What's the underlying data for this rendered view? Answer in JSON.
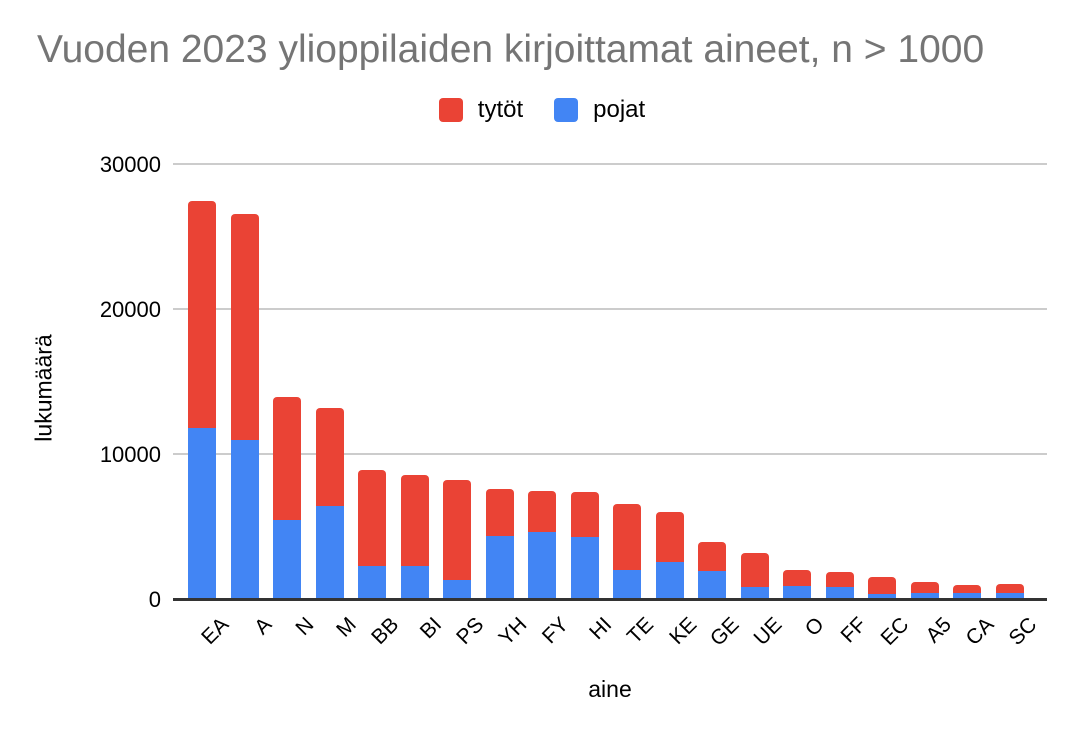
{
  "title": "Vuoden 2023 ylioppilaiden kirjoittamat aineet, n > 1000",
  "axes": {
    "y_title": "lukumäärä",
    "x_title": "aine"
  },
  "legend": [
    {
      "label": "tytöt",
      "color": "#EA4335"
    },
    {
      "label": "pojat",
      "color": "#4285F4"
    }
  ],
  "colors": {
    "tytot_red": "#EA4335",
    "pojat_blue": "#4285F4",
    "title_gray": "#757575",
    "gridline": "#cccccc",
    "axis_line": "#333333",
    "background": "#ffffff"
  },
  "chart_data": {
    "type": "bar",
    "stacked": true,
    "title": "Vuoden 2023 ylioppilaiden kirjoittamat aineet, n > 1000",
    "xlabel": "aine",
    "ylabel": "lukumäärä",
    "ylim": [
      0,
      30000
    ],
    "yticks": [
      0,
      10000,
      20000,
      30000
    ],
    "grid": true,
    "legend_position": "top-center",
    "legend_order": [
      "tytöt",
      "pojat"
    ],
    "categories": [
      "EA",
      "A",
      "N",
      "M",
      "BB",
      "BI",
      "PS",
      "YH",
      "FY",
      "HI",
      "TE",
      "KE",
      "GE",
      "UE",
      "O",
      "FF",
      "EC",
      "A5",
      "CA",
      "SC"
    ],
    "series": [
      {
        "name": "pojat",
        "color": "#4285F4",
        "stack": "bottom",
        "values": [
          11800,
          11000,
          5450,
          6400,
          2300,
          2300,
          1300,
          4350,
          4650,
          4300,
          2000,
          2550,
          1900,
          800,
          900,
          800,
          350,
          450,
          450,
          400
        ]
      },
      {
        "name": "tytöt",
        "color": "#EA4335",
        "stack": "top",
        "values": [
          15650,
          15550,
          8500,
          6750,
          6600,
          6250,
          6900,
          3250,
          2800,
          3100,
          4550,
          3450,
          2050,
          2350,
          1100,
          1100,
          1150,
          700,
          550,
          650
        ]
      }
    ],
    "totals": [
      27450,
      26550,
      13950,
      13150,
      8900,
      8550,
      8200,
      7600,
      7450,
      7400,
      6550,
      6000,
      3950,
      3150,
      2000,
      1900,
      1500,
      1150,
      1000,
      1050
    ]
  }
}
